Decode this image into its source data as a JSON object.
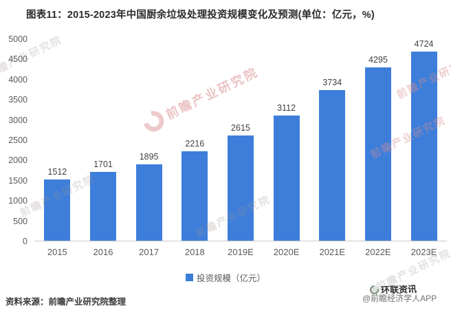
{
  "title": "图表11：2015-2023年中国厨余垃圾处理投资规模变化及预测(单位：亿元，%)",
  "chart_data": {
    "type": "bar",
    "categories": [
      "2015",
      "2016",
      "2017",
      "2018",
      "2019E",
      "2020E",
      "2021E",
      "2022E",
      "2023E"
    ],
    "values": [
      1512,
      1701,
      1895,
      2216,
      2615,
      3112,
      3734,
      4295,
      4724
    ],
    "title": "图表11：2015-2023年中国厨余垃圾处理投资规模变化及预测(单位：亿元，%)",
    "xlabel": "",
    "ylabel": "",
    "ylim": [
      0,
      5000
    ],
    "yticks": [
      "5000",
      "4500",
      "4000",
      "3500",
      "3000",
      "2500",
      "2000",
      "1500",
      "1000",
      "500",
      "0"
    ],
    "grid": false,
    "legend": "投资规模（亿元）",
    "legend_position": "bottom-center",
    "bar_color": "#3e7edb",
    "data_labels": true
  },
  "source_note": "资料来源：前瞻产业研究院整理",
  "watermark": {
    "brand_text": "前瞻产业研究院"
  },
  "overlay": {
    "publisher": "环联资讯",
    "app_credit": "@前瞻经济学人APP"
  },
  "colors": {
    "bar": "#3e7edb",
    "title_text": "#2b2b2b",
    "axis_text": "#595959",
    "value_label_text": "#404040",
    "axis_line": "#c8c8c8",
    "watermark_gray": "#9e948e",
    "watermark_pink": "#d68c8c"
  }
}
